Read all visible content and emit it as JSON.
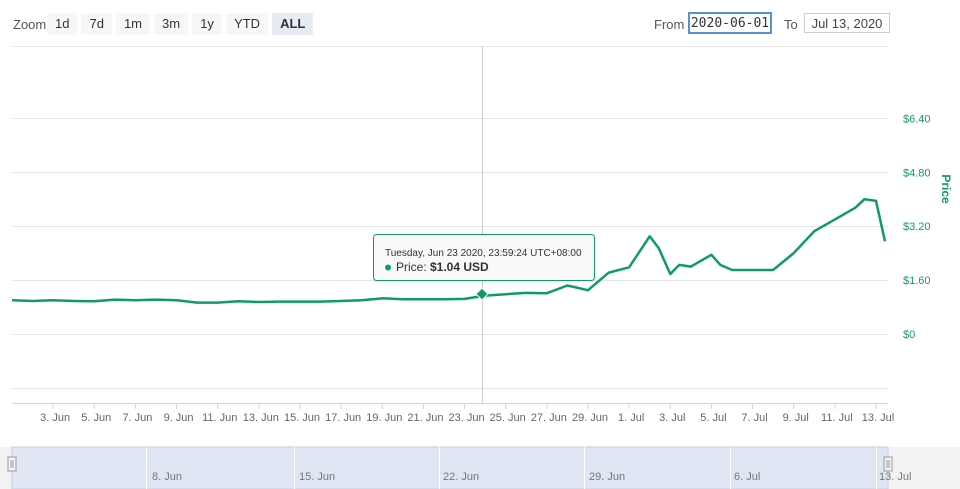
{
  "toolbar": {
    "zoom_label": "Zoom",
    "buttons": [
      {
        "label": "1d",
        "active": false
      },
      {
        "label": "7d",
        "active": false
      },
      {
        "label": "1m",
        "active": false
      },
      {
        "label": "3m",
        "active": false
      },
      {
        "label": "1y",
        "active": false
      },
      {
        "label": "YTD",
        "active": false
      },
      {
        "label": "ALL",
        "active": true
      }
    ],
    "from_label": "From",
    "from_value": "2020-06-01",
    "to_label": "To",
    "to_value": "Jul 13, 2020"
  },
  "tooltip": {
    "header": "Tuesday, Jun 23 2020, 23:59:24 UTC+08:00",
    "series_label": "Price:",
    "value": "$1.04 USD"
  },
  "navigator": {
    "labels": [
      "8. Jun",
      "15. Jun",
      "22. Jun",
      "29. Jun",
      "6. Jul",
      "13. Jul"
    ]
  },
  "colors": {
    "line": "#0f9b66",
    "navigator_fill": "#dfe6f4",
    "grid": "#e6e6e6"
  },
  "chart_data": {
    "type": "line",
    "title": "",
    "xlabel": "",
    "ylabel": "Price",
    "x_tick_labels": [
      "3. Jun",
      "5. Jun",
      "7. Jun",
      "9. Jun",
      "11. Jun",
      "13. Jun",
      "15. Jun",
      "17. Jun",
      "19. Jun",
      "21. Jun",
      "23. Jun",
      "25. Jun",
      "27. Jun",
      "29. Jun",
      "1. Jul",
      "3. Jul",
      "5. Jul",
      "7. Jul",
      "9. Jul",
      "11. Jul",
      "13. Jul"
    ],
    "y_tick_labels": [
      "$0",
      "$1.60",
      "$3.20",
      "$4.80",
      "$6.40"
    ],
    "y_ticks": [
      0,
      1.6,
      3.2,
      4.8,
      6.4
    ],
    "ylim": [
      -2.05,
      8.55
    ],
    "xlim": [
      "2020-06-01",
      "2020-07-13"
    ],
    "grid": true,
    "legend": "none",
    "y_axis_side": "right",
    "series": [
      {
        "x": [
          "2020-06-01",
          "2020-06-02",
          "2020-06-03",
          "2020-06-04",
          "2020-06-05",
          "2020-06-06",
          "2020-06-07",
          "2020-06-08",
          "2020-06-09",
          "2020-06-10",
          "2020-06-11",
          "2020-06-12",
          "2020-06-13",
          "2020-06-14",
          "2020-06-15",
          "2020-06-16",
          "2020-06-17",
          "2020-06-18",
          "2020-06-19",
          "2020-06-20",
          "2020-06-21",
          "2020-06-22",
          "2020-06-23",
          "2020-06-24",
          "2020-06-25",
          "2020-06-26",
          "2020-06-27",
          "2020-06-28",
          "2020-06-29",
          "2020-06-30",
          "2020-07-01",
          "2020-07-02",
          "2020-07-02",
          "2020-07-03",
          "2020-07-03",
          "2020-07-04",
          "2020-07-05",
          "2020-07-05",
          "2020-07-06",
          "2020-07-07",
          "2020-07-08",
          "2020-07-09",
          "2020-07-10",
          "2020-07-11",
          "2020-07-12",
          "2020-07-12",
          "2020-07-13",
          "2020-07-13"
        ],
        "values": [
          1.0,
          0.98,
          1.0,
          0.98,
          0.97,
          1.02,
          1.0,
          1.02,
          1.0,
          0.93,
          0.93,
          0.97,
          0.95,
          0.96,
          0.96,
          0.96,
          0.98,
          1.0,
          1.06,
          1.03,
          1.03,
          1.03,
          1.04,
          1.14,
          1.18,
          1.22,
          1.21,
          1.44,
          1.3,
          1.82,
          1.98,
          2.9,
          2.55,
          1.78,
          2.05,
          2.0,
          2.35,
          2.05,
          1.9,
          1.9,
          1.9,
          2.4,
          3.05,
          3.4,
          3.75,
          4.0,
          3.95,
          2.75
        ]
      }
    ]
  }
}
